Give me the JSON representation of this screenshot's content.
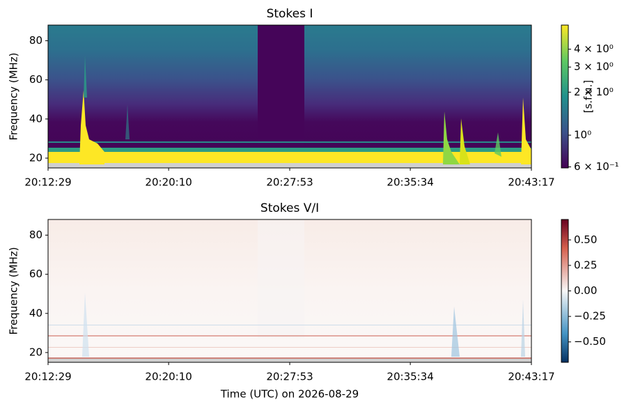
{
  "chart_data": [
    {
      "type": "heatmap",
      "title": "Stokes I",
      "ylabel": "Frequency (MHz)",
      "xlim": [
        "20:12:29",
        "20:43:17"
      ],
      "xticks": [
        "20:12:29",
        "20:20:10",
        "20:27:53",
        "20:35:34",
        "20:43:17"
      ],
      "ylim": [
        15,
        88
      ],
      "yticks": [
        20,
        40,
        60,
        80
      ],
      "colormap": "viridis",
      "colorbar": {
        "label": "[s.f.u.]",
        "scale": "log",
        "clim": [
          0.59,
          5.9
        ],
        "ticks": [
          {
            "value": 4,
            "label": "4 × 10⁰"
          },
          {
            "value": 3,
            "label": "3 × 10⁰"
          },
          {
            "value": 2,
            "label": "2 × 10⁰"
          },
          {
            "value": 1,
            "label": "10⁰"
          },
          {
            "value": 0.6,
            "label": "6 × 10⁻¹"
          }
        ]
      }
    },
    {
      "type": "heatmap",
      "title": "Stokes V/I",
      "ylabel": "Frequency (MHz)",
      "xlabel": "Time (UTC) on 2026-08-29",
      "xlim": [
        "20:12:29",
        "20:43:17"
      ],
      "xticks": [
        "20:12:29",
        "20:20:10",
        "20:27:53",
        "20:35:34",
        "20:43:17"
      ],
      "ylim": [
        15,
        88
      ],
      "yticks": [
        20,
        40,
        60,
        80
      ],
      "colormap": "RdBu_r",
      "colorbar": {
        "scale": "linear",
        "clim": [
          -0.7,
          0.7
        ],
        "ticks": [
          {
            "value": 0.5,
            "label": "0.50"
          },
          {
            "value": 0.25,
            "label": "0.25"
          },
          {
            "value": 0,
            "label": "0.00"
          },
          {
            "value": -0.25,
            "label": "−0.25"
          },
          {
            "value": -0.5,
            "label": "−0.50"
          }
        ]
      }
    }
  ]
}
